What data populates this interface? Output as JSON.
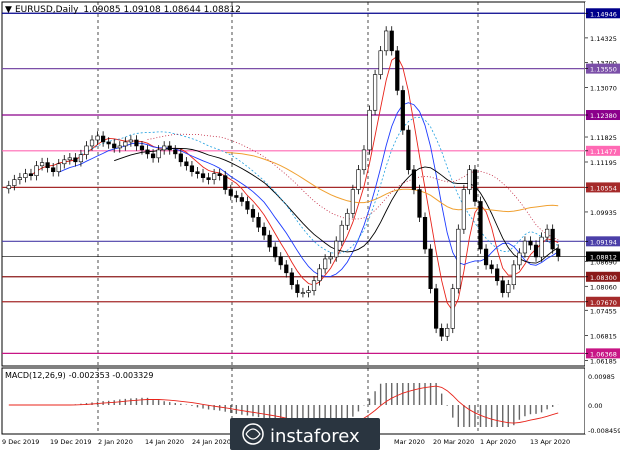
{
  "header": {
    "symbol": "EURUSD",
    "timeframe": "Daily",
    "ohlc": "1.09085 1.09108 1.08644 1.08812"
  },
  "macd": {
    "label": "MACD(12,26,9)",
    "values": "-0.002353 -0.003329",
    "levels": [
      "0.00985",
      "0.00",
      "-0.008459"
    ]
  },
  "price_labels": [
    {
      "value": "1.14946",
      "highlight": true,
      "color": "#00008b"
    },
    {
      "value": "1.14325",
      "highlight": false
    },
    {
      "value": "1.13700",
      "highlight": false
    },
    {
      "value": "1.13550",
      "highlight": true,
      "color": "#7b4fa8"
    },
    {
      "value": "1.13070",
      "highlight": false
    },
    {
      "value": "1.12380",
      "highlight": true,
      "color": "#8b008b"
    },
    {
      "value": "1.11825",
      "highlight": false
    },
    {
      "value": "1.11477",
      "highlight": true,
      "color": "#ff69b4"
    },
    {
      "value": "1.11195",
      "highlight": false
    },
    {
      "value": "1.10554",
      "highlight": true,
      "color": "#a52a2a"
    },
    {
      "value": "1.09935",
      "highlight": false
    },
    {
      "value": "1.09194",
      "highlight": true,
      "color": "#4b3fa8"
    },
    {
      "value": "1.08812",
      "highlight": true,
      "color": "#000000"
    },
    {
      "value": "1.08690",
      "highlight": false
    },
    {
      "value": "1.08300",
      "highlight": true,
      "color": "#8b1a1a"
    },
    {
      "value": "1.08060",
      "highlight": false
    },
    {
      "value": "1.07670",
      "highlight": true,
      "color": "#a52a2a"
    },
    {
      "value": "1.07455",
      "highlight": false
    },
    {
      "value": "1.06815",
      "highlight": false
    },
    {
      "value": "1.06368",
      "highlight": true,
      "color": "#c71585"
    },
    {
      "value": "1.06185",
      "highlight": false
    }
  ],
  "date_labels": [
    "9 Dec 2019",
    "19 Dec 2019",
    "2 Jan 2020",
    "14 Jan 2020",
    "24 Jan 2020",
    "Mar 2020",
    "20 Mar 2020",
    "1 Apr 2020",
    "13 Apr 2020"
  ],
  "watermark": "instaforex",
  "colors": {
    "up_candle": "#000000",
    "down_candle": "#000000",
    "ma_red": "#e8231a",
    "ma_blue": "#1e3cff",
    "ma_black": "#000000",
    "ma_orange": "#f0a030",
    "ichimoku_cloud": "#20a0e0",
    "ichimoku_red": "#c0203a",
    "macd_signal": "#e8231a",
    "macd_hist": "#666666",
    "watermark_bg": "#2a3540"
  }
}
